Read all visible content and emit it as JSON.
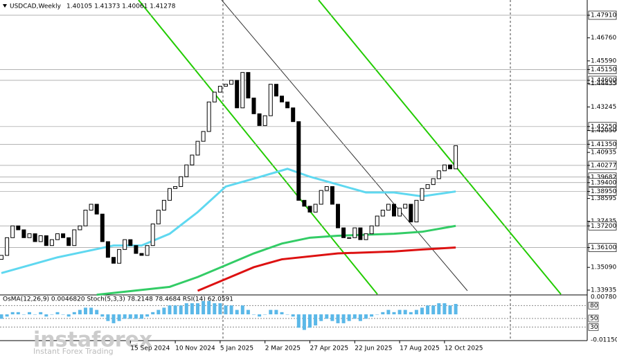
{
  "header": {
    "title": "USDCAD,Weekly",
    "ohlc": "1.40105 1.41373 1.40061 1.41278"
  },
  "price_chart": {
    "type": "candlestick",
    "first_open": 1.355,
    "close": [
      1.357,
      1.366,
      1.372,
      1.37,
      1.366,
      1.368,
      1.364,
      1.367,
      1.362,
      1.365,
      1.368,
      1.366,
      1.362,
      1.37,
      1.372,
      1.38,
      1.383,
      1.378,
      1.364,
      1.356,
      1.353,
      1.36,
      1.365,
      1.362,
      1.358,
      1.357,
      1.362,
      1.373,
      1.38,
      1.385,
      1.391,
      1.392,
      1.397,
      1.403,
      1.408,
      1.415,
      1.42,
      1.435,
      1.44,
      1.443,
      1.444,
      1.446,
      1.432,
      1.45,
      1.437,
      1.429,
      1.423,
      1.428,
      1.444,
      1.438,
      1.435,
      1.432,
      1.425,
      1.385,
      1.382,
      1.379,
      1.383,
      1.39,
      1.392,
      1.383,
      1.371,
      1.366,
      1.366,
      1.371,
      1.365,
      1.368,
      1.372,
      1.377,
      1.38,
      1.383,
      1.377,
      1.381,
      1.383,
      1.374,
      1.385,
      1.391,
      1.393,
      1.396,
      1.4,
      1.403,
      1.401,
      1.41278
    ],
    "ylim": [
      1.33725,
      1.48684
    ],
    "yticks": [
      {
        "value": 1.4791,
        "label": "1.47910",
        "boxed": true
      },
      {
        "value": 1.4676,
        "label": "1.46760"
      },
      {
        "value": 1.4559,
        "label": "1.45590"
      },
      {
        "value": 1.4515,
        "label": "1.45150",
        "boxed": true
      },
      {
        "value": 1.446,
        "label": "1.44600",
        "boxed": true
      },
      {
        "value": 1.44435,
        "label": "1.44435"
      },
      {
        "value": 1.43245,
        "label": "1.43245"
      },
      {
        "value": 1.4225,
        "label": "1.42250",
        "boxed": true
      },
      {
        "value": 1.4205,
        "label": "1.42050"
      },
      {
        "value": 1.4135,
        "label": "1.41350",
        "boxed": true
      },
      {
        "value": 1.40935,
        "label": "1.40935"
      },
      {
        "value": 1.40277,
        "label": "1.40277",
        "boxed": true
      },
      {
        "value": 1.39682,
        "label": "1.39682",
        "boxed": true
      },
      {
        "value": 1.394,
        "label": "1.39400",
        "boxed": true
      },
      {
        "value": 1.3895,
        "label": "1.38950",
        "boxed": true
      },
      {
        "value": 1.38595,
        "label": "1.38595"
      },
      {
        "value": 1.37435,
        "label": "1.37435"
      },
      {
        "value": 1.372,
        "label": "1.37200",
        "boxed": true
      },
      {
        "value": 1.361,
        "label": "1.36100",
        "boxed": true
      },
      {
        "value": 1.3509,
        "label": "1.35090"
      },
      {
        "value": 1.33935,
        "label": "1.33935"
      }
    ],
    "moving_averages": [
      {
        "color": "#5fd8f0",
        "x": [
          0,
          10,
          20,
          25,
          30,
          35,
          40,
          45,
          51,
          55,
          60,
          65,
          70,
          75,
          81
        ],
        "values": [
          1.348,
          1.356,
          1.362,
          1.362,
          1.368,
          1.379,
          1.392,
          1.396,
          1.401,
          1.397,
          1.393,
          1.389,
          1.389,
          1.387,
          1.3895
        ]
      },
      {
        "color": "#33cc66",
        "x": [
          17,
          30,
          35,
          40,
          45,
          50,
          55,
          60,
          70,
          75,
          81
        ],
        "values": [
          1.337,
          1.341,
          1.346,
          1.352,
          1.358,
          1.363,
          1.366,
          1.367,
          1.368,
          1.369,
          1.372
        ]
      },
      {
        "color": "#dd1111",
        "x": [
          35,
          40,
          45,
          50,
          60,
          70,
          75,
          81
        ],
        "values": [
          1.339,
          1.345,
          1.351,
          1.355,
          1.358,
          1.359,
          1.36,
          1.361
        ]
      }
    ],
    "x_labels": [
      {
        "candle": 23,
        "label": "15 Sep 2024"
      },
      {
        "candle": 31,
        "label": "10 Nov 2024"
      },
      {
        "candle": 39,
        "label": "5 Jan 2025"
      },
      {
        "candle": 47,
        "label": "2 Mar 2025"
      },
      {
        "candle": 55,
        "label": "27 Apr 2025"
      },
      {
        "candle": 63,
        "label": "22 Jun 2025"
      },
      {
        "candle": 71,
        "label": "17 Aug 2025"
      },
      {
        "candle": 79,
        "label": "12 Oct 2025"
      }
    ]
  },
  "oscillator": {
    "title": "OsMA(12,26,9) 0.0046820  Stoch(5,3,3) 78.2148 78.4684  RSI(14) 62.0591",
    "osma": [
      -0.002,
      -0.001,
      0.001,
      0.001,
      0.0,
      0.001,
      0.0,
      0.001,
      -0.001,
      0.0,
      0.001,
      0.0,
      -0.001,
      0.001,
      0.002,
      0.003,
      0.003,
      0.002,
      -0.001,
      -0.003,
      -0.004,
      -0.003,
      -0.002,
      -0.002,
      -0.002,
      -0.002,
      -0.001,
      0.001,
      0.002,
      0.003,
      0.004,
      0.004,
      0.004,
      0.005,
      0.005,
      0.005,
      0.006,
      0.006,
      0.005,
      0.005,
      0.004,
      0.004,
      0.002,
      0.004,
      0.002,
      0.0,
      -0.001,
      0.0,
      0.002,
      0.002,
      0.001,
      0.0,
      -0.001,
      -0.006,
      -0.007,
      -0.006,
      -0.005,
      -0.003,
      -0.002,
      -0.003,
      -0.004,
      -0.004,
      -0.003,
      -0.002,
      -0.003,
      -0.002,
      -0.001,
      0.0,
      0.001,
      0.002,
      0.001,
      0.002,
      0.002,
      0.001,
      0.002,
      0.003,
      0.004,
      0.004,
      0.005,
      0.005,
      0.004,
      0.004682
    ],
    "ylim": [
      -0.0115,
      0.0078
    ],
    "yticks": [
      {
        "value": 0.0078,
        "label": "0.0078000"
      },
      {
        "value": -0.0115,
        "label": "-0.01150"
      }
    ],
    "level_range": [
      0,
      100
    ],
    "levels": [
      80,
      50,
      30
    ]
  },
  "watermark": {
    "brand": "instaforex",
    "tagline": "Instant Forex Trading"
  }
}
